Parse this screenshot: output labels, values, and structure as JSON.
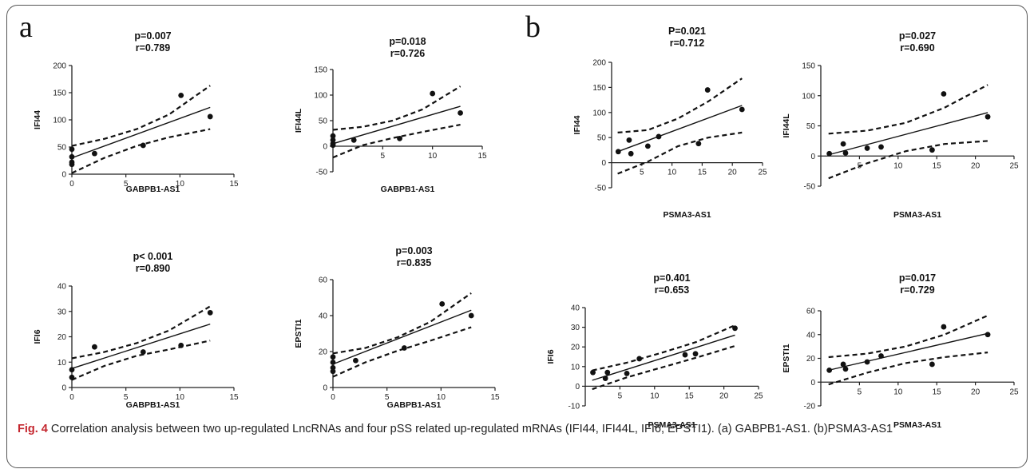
{
  "panel_letters": [
    "a",
    "b"
  ],
  "caption": {
    "label": "Fig. 4",
    "text": " Correlation analysis between two up-regulated LncRNAs and four pSS related up-regulated mRNAs (IFI44, IFI44L, IFI6, EPSTI1). (a) GABPB1-AS1. (b)PSMA3-AS1"
  },
  "chart_data": [
    {
      "type": "scatter",
      "p_text": "p=0.007",
      "r_text": "r=0.789",
      "xlabel": "GABPB1-AS1",
      "ylabel": "IFI44",
      "xlim": [
        0,
        15
      ],
      "ylim": [
        0,
        200
      ],
      "xticks": [
        0,
        5,
        10,
        15
      ],
      "yticks": [
        0,
        50,
        100,
        150,
        200
      ],
      "points": [
        [
          0,
          46
        ],
        [
          0,
          32
        ],
        [
          0,
          22
        ],
        [
          0,
          18
        ],
        [
          2.1,
          38
        ],
        [
          6.6,
          53
        ],
        [
          10.1,
          145
        ],
        [
          12.8,
          106
        ]
      ],
      "fit": [
        [
          0,
          30
        ],
        [
          12.8,
          123
        ]
      ],
      "ci_upper": [
        [
          0,
          52
        ],
        [
          3,
          65
        ],
        [
          6,
          83
        ],
        [
          9,
          110
        ],
        [
          12.8,
          163
        ]
      ],
      "ci_lower": [
        [
          0,
          2
        ],
        [
          3,
          30
        ],
        [
          6,
          52
        ],
        [
          9,
          68
        ],
        [
          12.8,
          83
        ]
      ]
    },
    {
      "type": "scatter",
      "p_text": "p=0.018",
      "r_text": "r=0.726",
      "xlabel": "GABPB1-AS1",
      "ylabel": "IFI44L",
      "xlim": [
        0,
        15
      ],
      "ylim": [
        -50,
        150
      ],
      "xticks": [
        5,
        10,
        15
      ],
      "yticks": [
        -50,
        0,
        50,
        100,
        150
      ],
      "points": [
        [
          0,
          20
        ],
        [
          0,
          12
        ],
        [
          0,
          5
        ],
        [
          0,
          2
        ],
        [
          2.1,
          12
        ],
        [
          6.7,
          15
        ],
        [
          10,
          103
        ],
        [
          12.8,
          65
        ]
      ],
      "fit": [
        [
          0,
          5
        ],
        [
          12.8,
          78
        ]
      ],
      "ci_upper": [
        [
          0,
          32
        ],
        [
          3,
          38
        ],
        [
          6,
          50
        ],
        [
          9,
          72
        ],
        [
          12.8,
          117
        ]
      ],
      "ci_lower": [
        [
          0,
          -22
        ],
        [
          3,
          2
        ],
        [
          6,
          16
        ],
        [
          9,
          28
        ],
        [
          12.8,
          42
        ]
      ]
    },
    {
      "type": "scatter",
      "p_text": "P=0.021",
      "r_text": "r=0.712",
      "xlabel": "PSMA3-AS1",
      "ylabel": "IFI44",
      "xlim": [
        0,
        25
      ],
      "ylim": [
        -50,
        200
      ],
      "xticks": [
        5,
        10,
        15,
        20,
        25
      ],
      "yticks": [
        -50,
        0,
        50,
        100,
        150,
        200
      ],
      "points": [
        [
          1.1,
          22
        ],
        [
          2.9,
          45
        ],
        [
          3.2,
          18
        ],
        [
          6,
          33
        ],
        [
          7.8,
          52
        ],
        [
          14.4,
          38
        ],
        [
          15.9,
          145
        ],
        [
          21.6,
          106
        ]
      ],
      "fit": [
        [
          1,
          22
        ],
        [
          21.6,
          114
        ]
      ],
      "ci_upper": [
        [
          1,
          60
        ],
        [
          6,
          65
        ],
        [
          11,
          88
        ],
        [
          16,
          122
        ],
        [
          21.6,
          168
        ]
      ],
      "ci_lower": [
        [
          1,
          -22
        ],
        [
          6,
          2
        ],
        [
          11,
          33
        ],
        [
          16,
          50
        ],
        [
          21.6,
          60
        ]
      ]
    },
    {
      "type": "scatter",
      "p_text": "p=0.027",
      "r_text": "r=0.690",
      "xlabel": "PSMA3-AS1",
      "ylabel": "IFI44L",
      "xlim": [
        0,
        25
      ],
      "ylim": [
        -50,
        150
      ],
      "xticks": [
        5,
        10,
        15,
        20,
        25
      ],
      "yticks": [
        -50,
        0,
        50,
        100,
        150
      ],
      "points": [
        [
          1.1,
          4
        ],
        [
          2.9,
          20
        ],
        [
          3.2,
          5
        ],
        [
          6,
          13
        ],
        [
          7.8,
          15
        ],
        [
          14.4,
          10
        ],
        [
          15.9,
          103
        ],
        [
          21.6,
          65
        ]
      ],
      "fit": [
        [
          1,
          2
        ],
        [
          21.6,
          72
        ]
      ],
      "ci_upper": [
        [
          1,
          37
        ],
        [
          6,
          42
        ],
        [
          11,
          55
        ],
        [
          16,
          80
        ],
        [
          21.6,
          118
        ]
      ],
      "ci_lower": [
        [
          1,
          -37
        ],
        [
          6,
          -12
        ],
        [
          11,
          8
        ],
        [
          16,
          20
        ],
        [
          21.6,
          25
        ]
      ]
    },
    {
      "type": "scatter",
      "p_text": "p< 0.001",
      "r_text": "r=0.890",
      "xlabel": "GABPB1-AS1",
      "ylabel": "IFI6",
      "xlim": [
        0,
        15
      ],
      "ylim": [
        0,
        40
      ],
      "xticks": [
        0,
        5,
        10,
        15
      ],
      "yticks": [
        0,
        10,
        20,
        30,
        40
      ],
      "points": [
        [
          0,
          7
        ],
        [
          0,
          4
        ],
        [
          2.1,
          16
        ],
        [
          6.6,
          14
        ],
        [
          10.1,
          16.6
        ],
        [
          12.8,
          29.5
        ]
      ],
      "fit": [
        [
          0,
          7.5
        ],
        [
          12.8,
          25
        ]
      ],
      "ci_upper": [
        [
          0,
          11.5
        ],
        [
          3,
          14
        ],
        [
          6,
          17.5
        ],
        [
          9,
          22.5
        ],
        [
          12.8,
          32
        ]
      ],
      "ci_lower": [
        [
          0,
          3
        ],
        [
          3,
          8.5
        ],
        [
          6,
          12.5
        ],
        [
          9,
          15
        ],
        [
          12.8,
          18.5
        ]
      ]
    },
    {
      "type": "scatter",
      "p_text": "p=0.003",
      "r_text": "r=0.835",
      "xlabel": "GABPB1-AS1",
      "ylabel": "EPSTI1",
      "xlim": [
        0,
        15
      ],
      "ylim": [
        0,
        60
      ],
      "xticks": [
        0,
        5,
        10,
        15
      ],
      "yticks": [
        0,
        20,
        40,
        60
      ],
      "points": [
        [
          0,
          17
        ],
        [
          0,
          14
        ],
        [
          0,
          11
        ],
        [
          0,
          9
        ],
        [
          2.1,
          15
        ],
        [
          6.6,
          22
        ],
        [
          10.1,
          46.5
        ],
        [
          12.8,
          40
        ]
      ],
      "fit": [
        [
          0,
          13
        ],
        [
          12.8,
          43
        ]
      ],
      "ci_upper": [
        [
          0,
          19
        ],
        [
          3,
          22
        ],
        [
          6,
          28
        ],
        [
          9,
          36.5
        ],
        [
          12.8,
          52.5
        ]
      ],
      "ci_lower": [
        [
          0,
          6
        ],
        [
          3,
          14
        ],
        [
          6,
          20.5
        ],
        [
          9,
          26
        ],
        [
          12.8,
          33.5
        ]
      ]
    },
    {
      "type": "scatter",
      "p_text": "p=0.401",
      "r_text": "r=0.653",
      "xlabel": "PSMA3-AS1",
      "ylabel": "IFI6",
      "xlim": [
        0,
        25
      ],
      "ylim": [
        -10,
        40
      ],
      "xticks": [
        5,
        10,
        15,
        20,
        25
      ],
      "yticks": [
        -10,
        0,
        10,
        20,
        30,
        40
      ],
      "points": [
        [
          1.1,
          7
        ],
        [
          2.9,
          4
        ],
        [
          3.2,
          7
        ],
        [
          6,
          6.5
        ],
        [
          7.8,
          14
        ],
        [
          14.4,
          16
        ],
        [
          15.9,
          16.5
        ],
        [
          21.6,
          29.5
        ]
      ],
      "fit": [
        [
          1,
          3
        ],
        [
          21.6,
          26
        ]
      ],
      "ci_upper": [
        [
          1,
          8
        ],
        [
          6,
          12
        ],
        [
          11,
          17
        ],
        [
          16,
          22.5
        ],
        [
          21.6,
          31
        ]
      ],
      "ci_lower": [
        [
          1,
          -1.5
        ],
        [
          6,
          4.5
        ],
        [
          11,
          9.5
        ],
        [
          16,
          14.5
        ],
        [
          21.6,
          20.5
        ]
      ]
    },
    {
      "type": "scatter",
      "p_text": "p=0.017",
      "r_text": "r=0.729",
      "xlabel": "PSMA3-AS1",
      "ylabel": "EPSTI1",
      "xlim": [
        0,
        25
      ],
      "ylim": [
        -20,
        60
      ],
      "xticks": [
        5,
        10,
        15,
        20,
        25
      ],
      "yticks": [
        -20,
        0,
        20,
        40,
        60
      ],
      "points": [
        [
          1.1,
          10
        ],
        [
          2.9,
          15
        ],
        [
          3.2,
          11
        ],
        [
          6,
          17
        ],
        [
          7.8,
          22
        ],
        [
          14.4,
          15
        ],
        [
          15.9,
          46.5
        ],
        [
          21.6,
          40
        ]
      ],
      "fit": [
        [
          1,
          10
        ],
        [
          21.6,
          41
        ]
      ],
      "ci_upper": [
        [
          1,
          21
        ],
        [
          6,
          24
        ],
        [
          11,
          30
        ],
        [
          16,
          40
        ],
        [
          21.6,
          56
        ]
      ],
      "ci_lower": [
        [
          1,
          -2
        ],
        [
          6,
          8
        ],
        [
          11,
          16
        ],
        [
          16,
          21
        ],
        [
          21.6,
          25
        ]
      ]
    }
  ]
}
